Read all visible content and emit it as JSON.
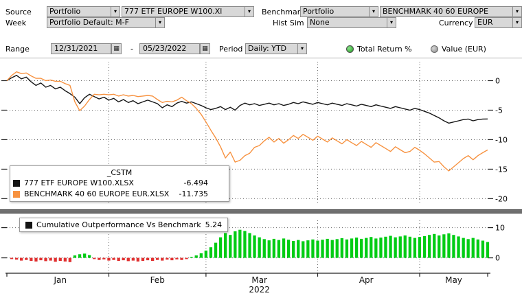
{
  "toolbar": {
    "row1": {
      "source_label": "Source",
      "source_value": "Portfolio",
      "portfolio_file": "777 ETF EUROPE W100.Xl",
      "benchmark_label": "Benchmark",
      "benchmark_value": "Portfolio",
      "benchmark_file": "BENCHMARK 40 60 EUROPE"
    },
    "row2": {
      "week_label": "Week",
      "week_value": "Portfolio Default: M-F",
      "hist_sim_label": "Hist Sim",
      "hist_sim_value": "None",
      "currency_label": "Currency",
      "currency_value": "EUR"
    },
    "row3": {
      "range_label": "Range",
      "range_start": "12/31/2021",
      "range_separator": "-",
      "range_end": "05/23/2022",
      "period_label": "Period",
      "period_value": "Daily: YTD",
      "radio_total_return": "Total Return %",
      "radio_total_return_selected": true,
      "radio_value_eur": "Value (EUR)",
      "radio_value_eur_selected": false
    }
  },
  "legend": {
    "title": "_CSTM",
    "rows": [
      {
        "name": "777 ETF EUROPE W100.XLSX",
        "value": "-6.494"
      },
      {
        "name": "BENCHMARK 40 60 EUROPE EUR.XLSX",
        "value": "-11.735"
      }
    ]
  },
  "outperformance_legend": {
    "label": "Cumulative Outperformance Vs Benchmark",
    "value": "5.24"
  },
  "colors": {
    "portfolio_line": "#141414",
    "benchmark_line": "#f79240",
    "bar_positive": "#00cc14",
    "bar_negative": "#e03030",
    "radio_selected": "#2fae2f",
    "field_bg": "#d8d8d8"
  },
  "chart_data": [
    {
      "type": "line",
      "panel": "total-return-percent",
      "ylim": [
        -21,
        3.2
      ],
      "yticks": [
        0,
        -5,
        -10,
        -15,
        -20
      ],
      "x_axis": {
        "start": "12/31/2021",
        "end": "05/23/2022",
        "n_points": 100,
        "month_labels": [
          {
            "label": "Jan",
            "index": 11
          },
          {
            "label": "Feb",
            "index": 31
          },
          {
            "label": "Mar",
            "index": 52
          },
          {
            "label": "Apr",
            "index": 74
          },
          {
            "label": "May",
            "index": 92
          }
        ],
        "month_boundaries": [
          21,
          41,
          64,
          85
        ],
        "year_label": "2022",
        "year_index": 52
      },
      "series": [
        {
          "name": "777 ETF EUROPE W100.XLSX",
          "color": "#141414",
          "final_value": -6.494,
          "values": [
            0.0,
            0.5,
            0.9,
            0.3,
            0.6,
            -0.2,
            -0.8,
            -0.4,
            -1.1,
            -0.8,
            -1.4,
            -1.1,
            -1.7,
            -2.2,
            -2.8,
            -3.9,
            -2.9,
            -2.3,
            -2.7,
            -3.1,
            -2.8,
            -3.3,
            -3.0,
            -3.6,
            -3.2,
            -3.7,
            -3.4,
            -3.9,
            -3.6,
            -3.3,
            -3.6,
            -3.9,
            -4.6,
            -4.1,
            -4.4,
            -3.8,
            -3.5,
            -3.8,
            -3.6,
            -3.9,
            -4.2,
            -4.6,
            -4.9,
            -4.7,
            -4.4,
            -4.9,
            -4.5,
            -5.0,
            -4.2,
            -3.8,
            -4.1,
            -3.9,
            -4.2,
            -4.0,
            -3.8,
            -4.1,
            -3.9,
            -4.2,
            -4.0,
            -3.7,
            -3.9,
            -3.6,
            -3.8,
            -4.0,
            -3.7,
            -3.9,
            -4.1,
            -3.8,
            -4.0,
            -4.2,
            -3.9,
            -4.1,
            -4.3,
            -4.0,
            -4.2,
            -4.4,
            -4.1,
            -4.3,
            -4.5,
            -4.7,
            -4.4,
            -4.6,
            -4.8,
            -5.0,
            -4.7,
            -4.9,
            -5.2,
            -5.5,
            -5.9,
            -6.3,
            -6.8,
            -7.2,
            -7.0,
            -6.8,
            -6.6,
            -6.5,
            -6.8,
            -6.6,
            -6.5,
            -6.494
          ]
        },
        {
          "name": "BENCHMARK 40 60 EUROPE EUR.XLSX",
          "color": "#f79240",
          "final_value": -11.735,
          "values": [
            0.0,
            0.9,
            1.5,
            1.2,
            1.3,
            0.8,
            0.4,
            0.4,
            0.0,
            0.1,
            -0.1,
            -0.1,
            -0.5,
            -0.8,
            -3.6,
            -5.1,
            -4.3,
            -3.2,
            -2.3,
            -2.4,
            -2.3,
            -2.4,
            -2.3,
            -2.6,
            -2.4,
            -2.6,
            -2.5,
            -2.7,
            -2.6,
            -2.5,
            -2.6,
            -3.2,
            -3.7,
            -3.5,
            -3.6,
            -3.3,
            -2.8,
            -3.4,
            -3.9,
            -4.7,
            -5.7,
            -7.0,
            -8.4,
            -9.7,
            -11.2,
            -13.1,
            -12.1,
            -13.8,
            -13.5,
            -12.7,
            -12.3,
            -11.3,
            -11.0,
            -10.2,
            -9.6,
            -10.4,
            -9.8,
            -10.6,
            -10.0,
            -9.3,
            -9.8,
            -9.1,
            -9.6,
            -10.1,
            -9.4,
            -9.9,
            -10.4,
            -9.7,
            -10.2,
            -10.7,
            -10.0,
            -10.5,
            -11.0,
            -10.3,
            -10.8,
            -11.3,
            -10.5,
            -11.0,
            -11.5,
            -12.0,
            -11.2,
            -11.7,
            -12.2,
            -12.0,
            -11.3,
            -11.8,
            -12.4,
            -13.1,
            -13.8,
            -13.7,
            -14.6,
            -15.3,
            -14.6,
            -13.9,
            -13.2,
            -12.7,
            -13.4,
            -12.7,
            -12.2,
            -11.735
          ]
        }
      ]
    },
    {
      "type": "bar",
      "panel": "cumulative-outperformance",
      "name": "Cumulative Outperformance Vs Benchmark",
      "final_value": 5.24,
      "ylim": [
        -3.5,
        11.5
      ],
      "yticks": [
        0,
        10
      ],
      "positive_color": "#00cc14",
      "negative_color": "#e03030",
      "values": [
        0.0,
        -0.4,
        -0.6,
        -0.9,
        -0.7,
        -1.0,
        -1.2,
        -0.8,
        -1.1,
        -0.9,
        -1.3,
        -1.0,
        -1.2,
        -1.4,
        0.8,
        1.2,
        1.4,
        0.9,
        -0.4,
        -0.7,
        -0.5,
        -0.9,
        -0.7,
        -1.0,
        -0.8,
        -1.1,
        -0.9,
        -1.2,
        -1.0,
        -0.8,
        -1.0,
        -0.7,
        -0.9,
        -0.6,
        -0.8,
        -0.5,
        -0.7,
        -0.4,
        0.3,
        0.8,
        1.5,
        2.4,
        3.5,
        5.0,
        6.8,
        8.2,
        7.6,
        8.8,
        9.3,
        8.9,
        8.2,
        7.4,
        6.8,
        6.2,
        5.8,
        6.3,
        5.9,
        6.4,
        6.0,
        5.6,
        5.9,
        5.5,
        5.8,
        6.1,
        5.7,
        6.0,
        6.3,
        5.9,
        6.2,
        6.5,
        6.1,
        6.4,
        6.7,
        6.3,
        6.6,
        6.9,
        6.4,
        6.7,
        7.0,
        7.3,
        6.8,
        7.1,
        7.4,
        7.0,
        6.6,
        6.9,
        7.2,
        7.6,
        7.9,
        7.4,
        7.8,
        8.1,
        7.6,
        7.1,
        6.6,
        6.2,
        6.6,
        6.1,
        5.7,
        5.24
      ]
    }
  ]
}
